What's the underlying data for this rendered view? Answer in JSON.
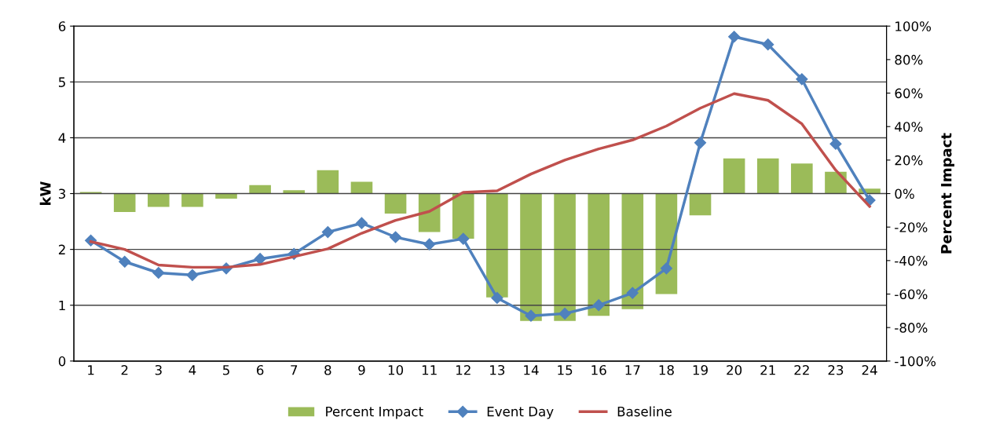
{
  "chart_data": {
    "type": "line",
    "ylabel": "kW",
    "y2label": "Percent Impact",
    "categories": [
      "1",
      "2",
      "3",
      "4",
      "5",
      "6",
      "7",
      "8",
      "9",
      "10",
      "11",
      "12",
      "13",
      "14",
      "15",
      "16",
      "17",
      "18",
      "19",
      "20",
      "21",
      "22",
      "23",
      "24"
    ],
    "series": [
      {
        "name": "Percent Impact",
        "type": "bar",
        "axis": "y2",
        "color": "#9bbb59",
        "values": [
          1,
          -11,
          -8,
          -8,
          -3,
          5,
          2,
          14,
          7,
          -12,
          -23,
          -27,
          -62,
          -76,
          -76,
          -73,
          -69,
          -60,
          -13,
          21,
          21,
          18,
          13,
          3
        ]
      },
      {
        "name": "Event Day",
        "marker": "diamond",
        "color": "#4f81bd",
        "values": [
          2.16,
          1.78,
          1.58,
          1.54,
          1.66,
          1.83,
          1.92,
          2.31,
          2.47,
          2.22,
          2.09,
          2.19,
          1.13,
          0.81,
          0.85,
          1.0,
          1.22,
          1.66,
          3.91,
          5.81,
          5.67,
          5.05,
          3.89,
          2.88
        ]
      },
      {
        "name": "Baseline",
        "marker": "none",
        "color": "#c0504d",
        "values": [
          2.14,
          2.0,
          1.72,
          1.68,
          1.68,
          1.73,
          1.87,
          2.01,
          2.29,
          2.52,
          2.68,
          3.02,
          3.05,
          3.35,
          3.6,
          3.8,
          3.96,
          4.21,
          4.53,
          4.79,
          4.67,
          4.25,
          3.42,
          2.77
        ]
      }
    ],
    "ylim": [
      0,
      6
    ],
    "yticks": [
      0,
      1,
      2,
      3,
      4,
      5,
      6
    ],
    "y2lim": [
      -100,
      100
    ],
    "y2ticks": [
      {
        "value": 100,
        "label": "100%"
      },
      {
        "value": 80,
        "label": "80%"
      },
      {
        "value": 60,
        "label": "60%"
      },
      {
        "value": 40,
        "label": "40%"
      },
      {
        "value": 20,
        "label": "20%"
      },
      {
        "value": 0,
        "label": "0%"
      },
      {
        "value": -20,
        "label": "-20%"
      },
      {
        "value": -40,
        "label": "-40%"
      },
      {
        "value": -60,
        "label": "-60%"
      },
      {
        "value": -80,
        "label": "-80%"
      },
      {
        "value": -100,
        "label": "-100%"
      }
    ],
    "grid": "y",
    "legend": "bottom"
  }
}
